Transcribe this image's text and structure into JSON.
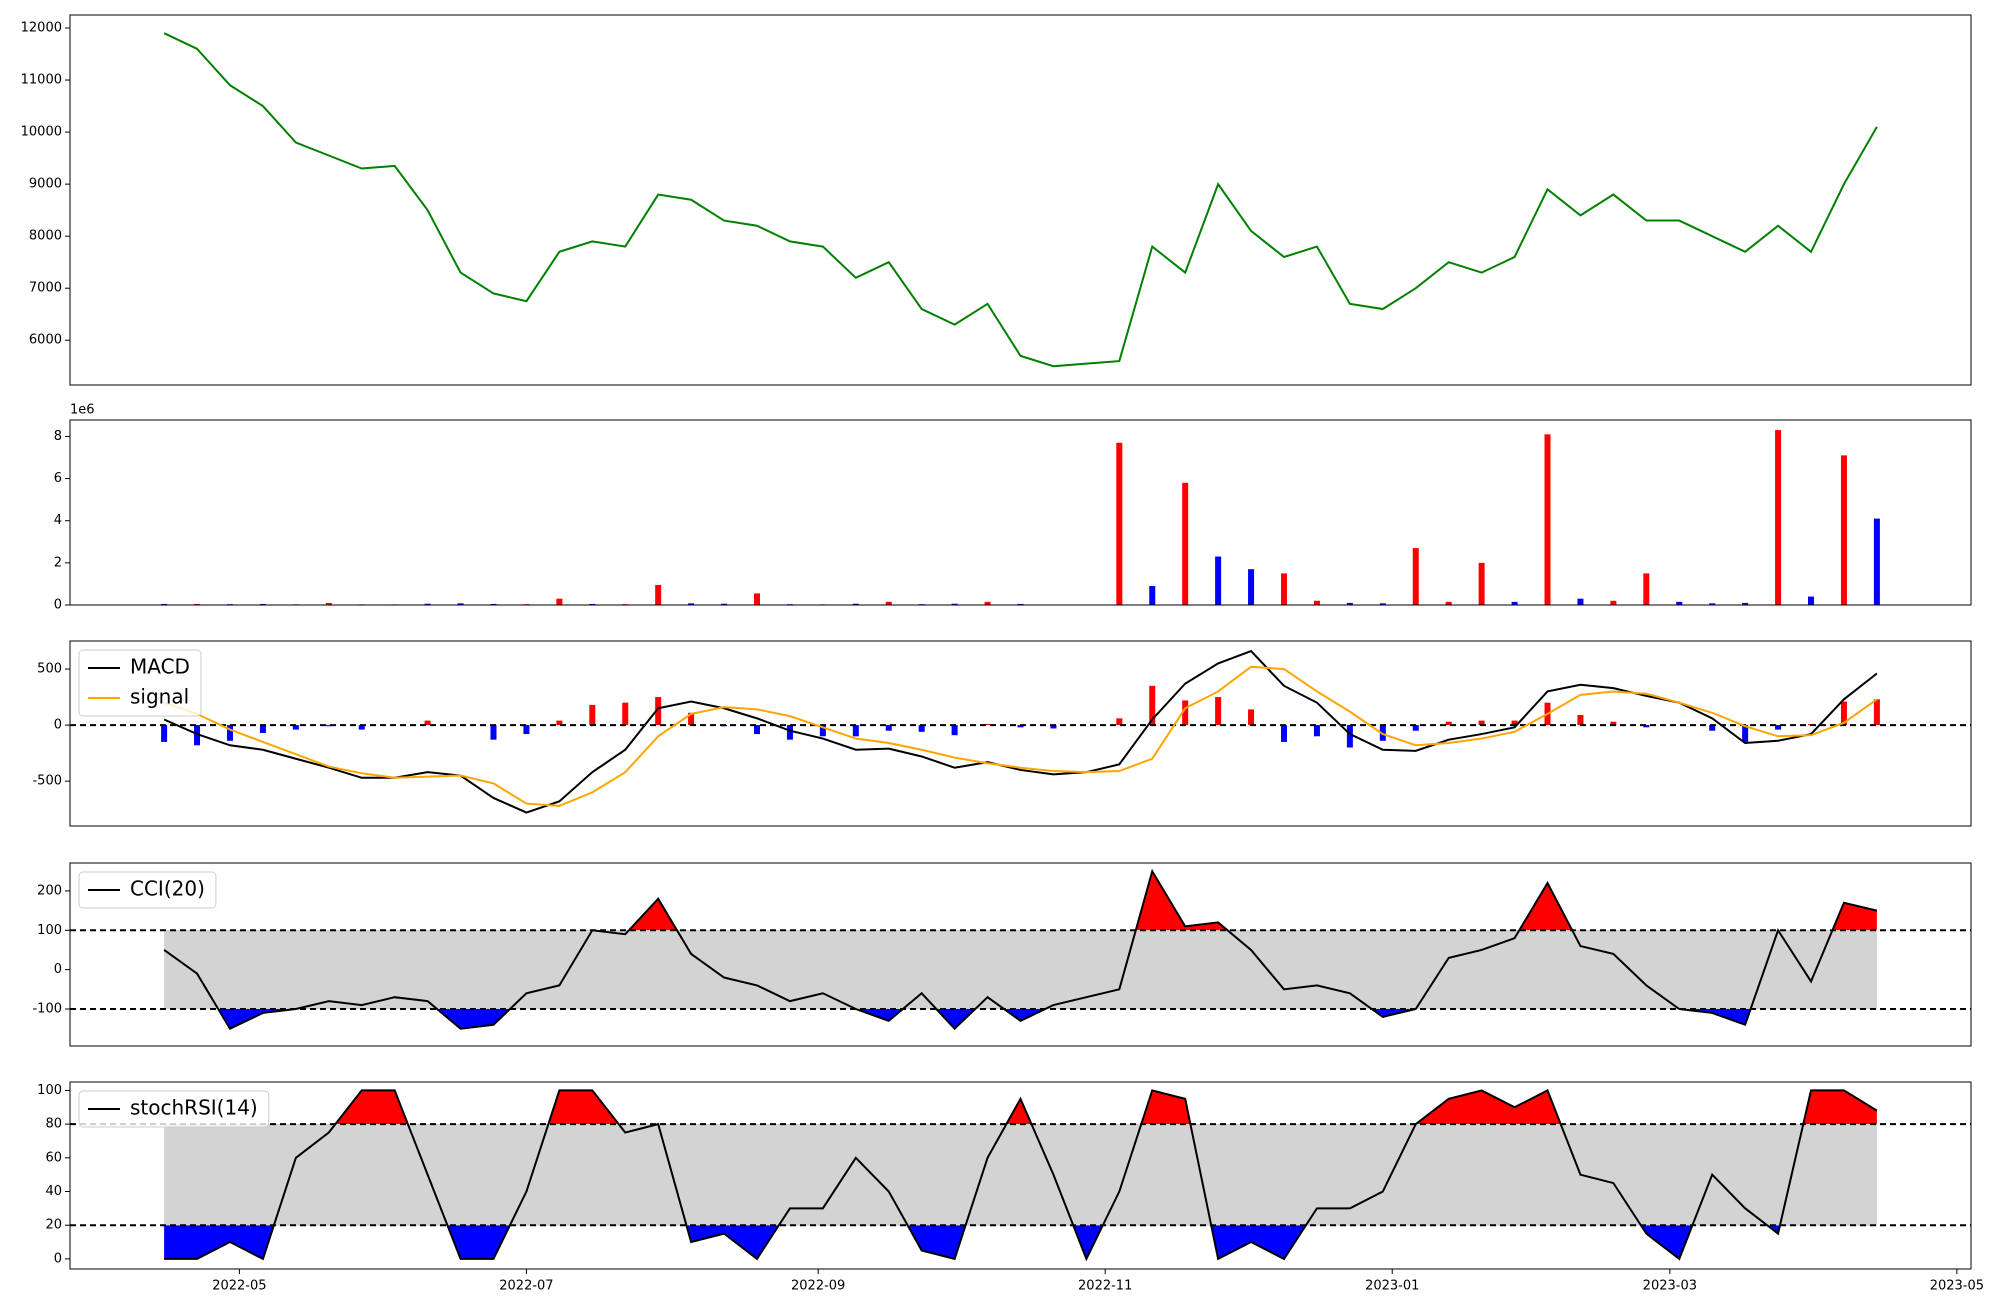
{
  "chart_data": [
    {
      "type": "line",
      "x": [
        "2022-04-15",
        "2022-04-22",
        "2022-04-29",
        "2022-05-06",
        "2022-05-13",
        "2022-05-20",
        "2022-05-27",
        "2022-06-03",
        "2022-06-10",
        "2022-06-17",
        "2022-06-24",
        "2022-07-01",
        "2022-07-08",
        "2022-07-15",
        "2022-07-22",
        "2022-07-29",
        "2022-08-05",
        "2022-08-12",
        "2022-08-19",
        "2022-08-26",
        "2022-09-02",
        "2022-09-09",
        "2022-09-16",
        "2022-09-23",
        "2022-09-30",
        "2022-10-07",
        "2022-10-14",
        "2022-10-21",
        "2022-10-28",
        "2022-11-04",
        "2022-11-11",
        "2022-11-18",
        "2022-11-25",
        "2022-12-02",
        "2022-12-09",
        "2022-12-16",
        "2022-12-23",
        "2022-12-30",
        "2023-01-06",
        "2023-01-13",
        "2023-01-20",
        "2023-01-27",
        "2023-02-03",
        "2023-02-10",
        "2023-02-17",
        "2023-02-24",
        "2023-03-03",
        "2023-03-10",
        "2023-03-17",
        "2023-03-24",
        "2023-03-31",
        "2023-04-07",
        "2023-04-14"
      ],
      "values": [
        11900,
        11600,
        10900,
        10500,
        9800,
        9550,
        9300,
        9350,
        8500,
        7300,
        6900,
        6750,
        7700,
        7900,
        7800,
        8800,
        8700,
        8300,
        8200,
        7900,
        7800,
        7200,
        7500,
        6600,
        6300,
        6700,
        5700,
        5500,
        5550,
        5600,
        7800,
        7300,
        9000,
        8100,
        7600,
        7800,
        6700,
        6600,
        7000,
        7500,
        7300,
        7600,
        8900,
        8400,
        8800,
        8300,
        8300,
        8000,
        7700,
        8200,
        7700,
        9000,
        10100
      ],
      "color": "green",
      "xlim": [
        "2022-03-26",
        "2023-05-04"
      ],
      "ylim": [
        5140,
        12250
      ],
      "yticks": [
        6000,
        7000,
        8000,
        9000,
        10000,
        11000,
        12000
      ]
    },
    {
      "type": "bar",
      "x": [
        "2022-04-15",
        "2022-04-22",
        "2022-04-29",
        "2022-05-06",
        "2022-05-13",
        "2022-05-20",
        "2022-05-27",
        "2022-06-03",
        "2022-06-10",
        "2022-06-17",
        "2022-06-24",
        "2022-07-01",
        "2022-07-08",
        "2022-07-15",
        "2022-07-22",
        "2022-07-29",
        "2022-08-05",
        "2022-08-12",
        "2022-08-19",
        "2022-08-26",
        "2022-09-02",
        "2022-09-09",
        "2022-09-16",
        "2022-09-23",
        "2022-09-30",
        "2022-10-07",
        "2022-10-14",
        "2022-10-21",
        "2022-10-28",
        "2022-11-04",
        "2022-11-11",
        "2022-11-18",
        "2022-11-25",
        "2022-12-02",
        "2022-12-09",
        "2022-12-16",
        "2022-12-23",
        "2022-12-30",
        "2023-01-06",
        "2023-01-13",
        "2023-01-20",
        "2023-01-27",
        "2023-02-03",
        "2023-02-10",
        "2023-02-17",
        "2023-02-24",
        "2023-03-03",
        "2023-03-10",
        "2023-03-17",
        "2023-03-24",
        "2023-03-31",
        "2023-04-07",
        "2023-04-14"
      ],
      "values": [
        50000,
        50000,
        40000,
        50000,
        30000,
        100000,
        30000,
        30000,
        60000,
        80000,
        50000,
        40000,
        300000,
        50000,
        40000,
        950000,
        80000,
        60000,
        550000,
        40000,
        30000,
        60000,
        150000,
        40000,
        60000,
        150000,
        50000,
        20000,
        20000,
        7700000,
        900000,
        5800000,
        2300000,
        1700000,
        1500000,
        200000,
        100000,
        80000,
        2700000,
        150000,
        2000000,
        150000,
        8100000,
        300000,
        200000,
        1500000,
        150000,
        80000,
        100000,
        8300000,
        400000,
        7100000,
        4100000
      ],
      "colors": [
        "blue",
        "red",
        "blue",
        "blue",
        "red",
        "red",
        "blue",
        "red",
        "blue",
        "blue",
        "blue",
        "red",
        "red",
        "blue",
        "red",
        "red",
        "blue",
        "blue",
        "red",
        "blue",
        "red",
        "blue",
        "red",
        "blue",
        "blue",
        "red",
        "blue",
        "red",
        "red",
        "red",
        "blue",
        "red",
        "blue",
        "blue",
        "red",
        "red",
        "blue",
        "blue",
        "red",
        "red",
        "red",
        "blue",
        "red",
        "blue",
        "red",
        "red",
        "blue",
        "blue",
        "blue",
        "red",
        "blue",
        "red",
        "blue"
      ],
      "xlim": [
        "2022-03-26",
        "2023-05-04"
      ],
      "ylim": [
        0,
        8780000
      ],
      "yticks": [
        0,
        {
          "value": 2000000,
          "label": "2"
        },
        {
          "value": 4000000,
          "label": "4"
        },
        {
          "value": 6000000,
          "label": "6"
        },
        {
          "value": 8000000,
          "label": "8"
        }
      ],
      "offset_label": "1e6"
    },
    {
      "type": "macd",
      "x": [
        "2022-04-15",
        "2022-04-22",
        "2022-04-29",
        "2022-05-06",
        "2022-05-13",
        "2022-05-20",
        "2022-05-27",
        "2022-06-03",
        "2022-06-10",
        "2022-06-17",
        "2022-06-24",
        "2022-07-01",
        "2022-07-08",
        "2022-07-15",
        "2022-07-22",
        "2022-07-29",
        "2022-08-05",
        "2022-08-12",
        "2022-08-19",
        "2022-08-26",
        "2022-09-02",
        "2022-09-09",
        "2022-09-16",
        "2022-09-23",
        "2022-09-30",
        "2022-10-07",
        "2022-10-14",
        "2022-10-21",
        "2022-10-28",
        "2022-11-04",
        "2022-11-11",
        "2022-11-18",
        "2022-11-25",
        "2022-12-02",
        "2022-12-09",
        "2022-12-16",
        "2022-12-23",
        "2022-12-30",
        "2023-01-06",
        "2023-01-13",
        "2023-01-20",
        "2023-01-27",
        "2023-02-03",
        "2023-02-10",
        "2023-02-17",
        "2023-02-24",
        "2023-03-03",
        "2023-03-10",
        "2023-03-17",
        "2023-03-24",
        "2023-03-31",
        "2023-04-07",
        "2023-04-14"
      ],
      "series": [
        {
          "name": "MACD",
          "color": "black",
          "values": [
            50,
            -80,
            -180,
            -220,
            -300,
            -380,
            -470,
            -470,
            -420,
            -450,
            -650,
            -780,
            -680,
            -420,
            -220,
            150,
            210,
            150,
            60,
            -50,
            -120,
            -220,
            -210,
            -280,
            -380,
            -330,
            -400,
            -440,
            -420,
            -350,
            50,
            370,
            550,
            660,
            350,
            200,
            -80,
            -220,
            -230,
            -130,
            -80,
            -20,
            300,
            360,
            330,
            260,
            200,
            60,
            -160,
            -140,
            -80,
            230,
            460
          ]
        },
        {
          "name": "signal",
          "color": "orange",
          "values": [
            200,
            100,
            -40,
            -150,
            -260,
            -370,
            -430,
            -470,
            -460,
            -450,
            -520,
            -700,
            -720,
            -600,
            -420,
            -100,
            100,
            160,
            140,
            80,
            -20,
            -120,
            -160,
            -220,
            -290,
            -340,
            -380,
            -410,
            -420,
            -410,
            -300,
            150,
            300,
            520,
            500,
            300,
            120,
            -80,
            -180,
            -160,
            -120,
            -60,
            100,
            270,
            300,
            280,
            200,
            110,
            -10,
            -100,
            -90,
            20,
            230
          ]
        }
      ],
      "histogram": {
        "values": [
          -150,
          -180,
          -140,
          -70,
          -40,
          -10,
          -40,
          0,
          40,
          0,
          -130,
          -80,
          40,
          180,
          200,
          250,
          110,
          -10,
          -80,
          -130,
          -100,
          -100,
          -50,
          -60,
          -90,
          10,
          -20,
          -30,
          0,
          60,
          350,
          220,
          250,
          140,
          -150,
          -100,
          -200,
          -140,
          -50,
          30,
          40,
          40,
          200,
          90,
          30,
          -20,
          0,
          -50,
          -150,
          -40,
          10,
          210,
          230
        ],
        "positive_color": "red",
        "negative_color": "blue"
      },
      "baseline": 0,
      "xlim": [
        "2022-03-26",
        "2023-05-04"
      ],
      "ylim": [
        -900,
        750
      ],
      "yticks": [
        -500,
        0,
        500
      ],
      "legend": "upper left"
    },
    {
      "type": "oscillator",
      "x": [
        "2022-04-15",
        "2022-04-22",
        "2022-04-29",
        "2022-05-06",
        "2022-05-13",
        "2022-05-20",
        "2022-05-27",
        "2022-06-03",
        "2022-06-10",
        "2022-06-17",
        "2022-06-24",
        "2022-07-01",
        "2022-07-08",
        "2022-07-15",
        "2022-07-22",
        "2022-07-29",
        "2022-08-05",
        "2022-08-12",
        "2022-08-19",
        "2022-08-26",
        "2022-09-02",
        "2022-09-09",
        "2022-09-16",
        "2022-09-23",
        "2022-09-30",
        "2022-10-07",
        "2022-10-14",
        "2022-10-21",
        "2022-10-28",
        "2022-11-04",
        "2022-11-11",
        "2022-11-18",
        "2022-11-25",
        "2022-12-02",
        "2022-12-09",
        "2022-12-16",
        "2022-12-23",
        "2022-12-30",
        "2023-01-06",
        "2023-01-13",
        "2023-01-20",
        "2023-01-27",
        "2023-02-03",
        "2023-02-10",
        "2023-02-17",
        "2023-02-24",
        "2023-03-03",
        "2023-03-10",
        "2023-03-17",
        "2023-03-24",
        "2023-03-31",
        "2023-04-07",
        "2023-04-14"
      ],
      "series": [
        {
          "name": "CCI(20)",
          "color": "black",
          "values": [
            50,
            -10,
            -150,
            -110,
            -100,
            -80,
            -90,
            -70,
            -80,
            -150,
            -140,
            -60,
            -40,
            100,
            90,
            180,
            40,
            -20,
            -40,
            -80,
            -60,
            -100,
            -130,
            -60,
            -150,
            -70,
            -130,
            -90,
            -70,
            -50,
            250,
            110,
            120,
            50,
            -50,
            -40,
            -60,
            -120,
            -100,
            30,
            50,
            80,
            220,
            60,
            40,
            -40,
            -100,
            -110,
            -140,
            100,
            -30,
            170,
            150
          ]
        }
      ],
      "thresholds": [
        100,
        -100
      ],
      "band_color": "lightgray",
      "upper_color": "red",
      "lower_color": "blue",
      "xlim": [
        "2022-03-26",
        "2023-05-04"
      ],
      "ylim": [
        -194,
        271
      ],
      "yticks": [
        -100,
        0,
        100,
        200
      ],
      "legend": "upper left"
    },
    {
      "type": "oscillator",
      "x": [
        "2022-04-15",
        "2022-04-22",
        "2022-04-29",
        "2022-05-06",
        "2022-05-13",
        "2022-05-20",
        "2022-05-27",
        "2022-06-03",
        "2022-06-10",
        "2022-06-17",
        "2022-06-24",
        "2022-07-01",
        "2022-07-08",
        "2022-07-15",
        "2022-07-22",
        "2022-07-29",
        "2022-08-05",
        "2022-08-12",
        "2022-08-19",
        "2022-08-26",
        "2022-09-02",
        "2022-09-09",
        "2022-09-16",
        "2022-09-23",
        "2022-09-30",
        "2022-10-07",
        "2022-10-14",
        "2022-10-21",
        "2022-10-28",
        "2022-11-04",
        "2022-11-11",
        "2022-11-18",
        "2022-11-25",
        "2022-12-02",
        "2022-12-09",
        "2022-12-16",
        "2022-12-23",
        "2022-12-30",
        "2023-01-06",
        "2023-01-13",
        "2023-01-20",
        "2023-01-27",
        "2023-02-03",
        "2023-02-10",
        "2023-02-17",
        "2023-02-24",
        "2023-03-03",
        "2023-03-10",
        "2023-03-17",
        "2023-03-24",
        "2023-03-31",
        "2023-04-07",
        "2023-04-14"
      ],
      "series": [
        {
          "name": "stochRSI(14)",
          "color": "black",
          "values": [
            0,
            0,
            10,
            0,
            60,
            75,
            100,
            100,
            50,
            0,
            0,
            40,
            100,
            100,
            75,
            80,
            10,
            15,
            0,
            30,
            30,
            60,
            40,
            5,
            0,
            60,
            95,
            50,
            0,
            40,
            100,
            95,
            0,
            10,
            0,
            30,
            30,
            40,
            80,
            95,
            100,
            90,
            100,
            50,
            45,
            15,
            0,
            50,
            30,
            15,
            100,
            100,
            88
          ]
        }
      ],
      "thresholds": [
        80,
        20
      ],
      "band_color": "lightgray",
      "upper_color": "red",
      "lower_color": "blue",
      "xlim": [
        "2022-03-26",
        "2023-05-04"
      ],
      "ylim": [
        -6,
        105
      ],
      "yticks": [
        0,
        20,
        40,
        60,
        80,
        100
      ],
      "legend": "upper left",
      "xticks": [
        {
          "value": "2022-05-01",
          "label": "2022-05"
        },
        {
          "value": "2022-07-01",
          "label": "2022-07"
        },
        {
          "value": "2022-09-01",
          "label": "2022-09"
        },
        {
          "value": "2022-11-01",
          "label": "2022-11"
        },
        {
          "value": "2023-01-01",
          "label": "2023-01"
        },
        {
          "value": "2023-03-01",
          "label": "2023-03"
        },
        {
          "value": "2023-05-01",
          "label": "2023-05"
        }
      ]
    }
  ]
}
